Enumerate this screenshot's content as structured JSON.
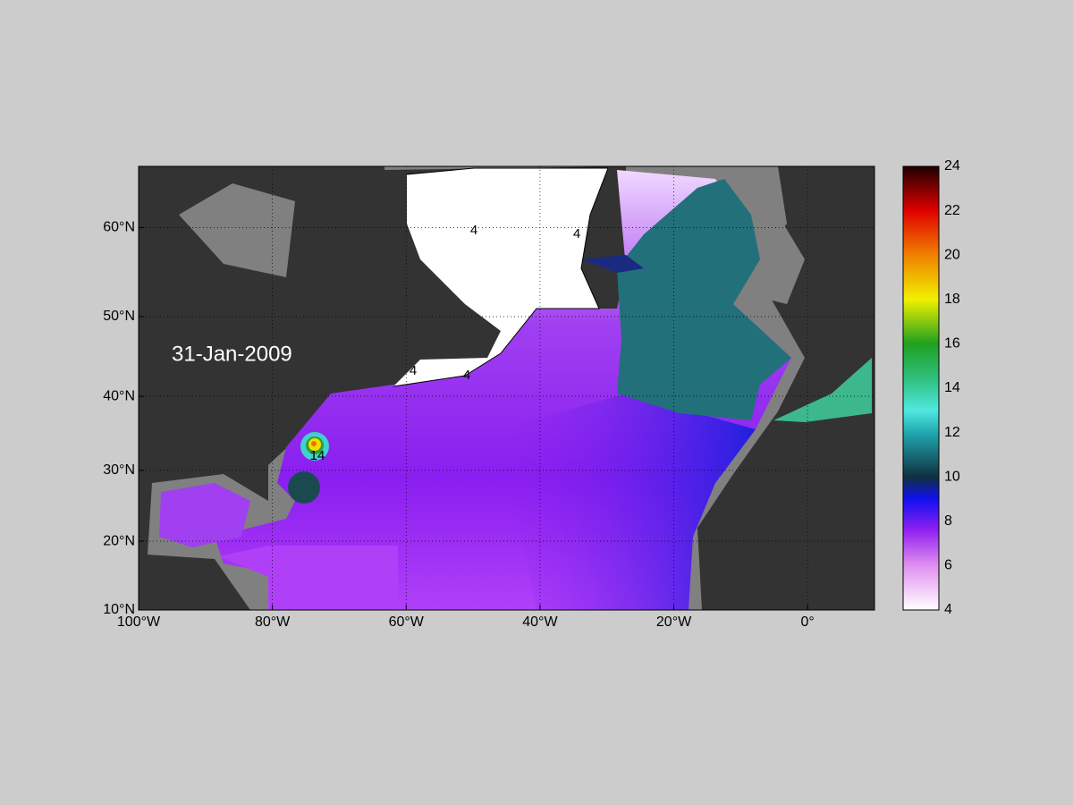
{
  "map": {
    "date": "31-Jan-2009",
    "xlim": [
      -100,
      10
    ],
    "ylim": [
      10,
      66
    ],
    "xticks": [
      {
        "value": -100,
        "label": "100°W"
      },
      {
        "value": -80,
        "label": "80°W"
      },
      {
        "value": -60,
        "label": "60°W"
      },
      {
        "value": -40,
        "label": "40°W"
      },
      {
        "value": -20,
        "label": "20°W"
      },
      {
        "value": 0,
        "label": "0°"
      }
    ],
    "yticks": [
      {
        "value": 10,
        "label": "10°N"
      },
      {
        "value": 20,
        "label": "20°N"
      },
      {
        "value": 30,
        "label": "30°N"
      },
      {
        "value": 40,
        "label": "40°N"
      },
      {
        "value": 50,
        "label": "50°N"
      },
      {
        "value": 60,
        "label": "60°N"
      }
    ],
    "grid": true,
    "contour_labels": [
      4,
      4,
      4,
      4,
      14
    ],
    "colorbar": {
      "lim": [
        4,
        24
      ],
      "ticks": [
        4,
        6,
        8,
        10,
        12,
        14,
        16,
        18,
        20,
        22,
        24
      ]
    }
  }
}
